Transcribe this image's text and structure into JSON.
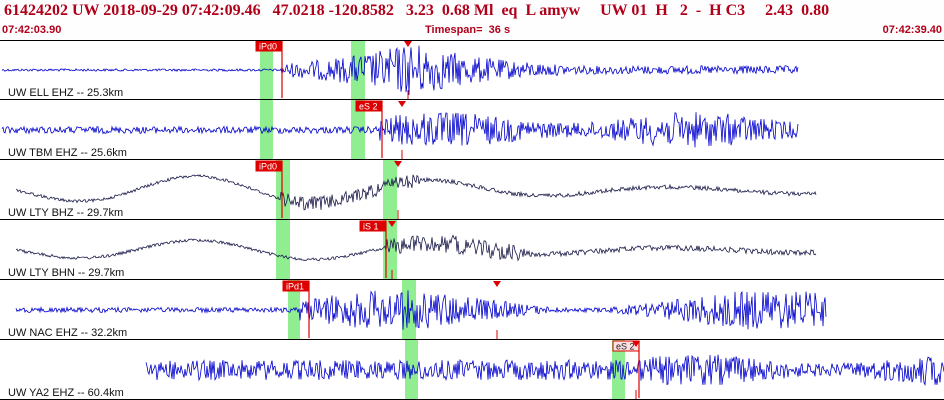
{
  "header": {
    "summary_line": "61424202 UW 2018-09-29 07:42:09.46   47.0218 -120.8582   3.23  0.68 Ml  eq  L amyw     UW 01  H   2  -  H C3     2.43  0.80",
    "start_time": "07:42:03.90",
    "timespan": "Timespan=  36 s",
    "end_time": "07:42:39.40"
  },
  "colors": {
    "header_text": "#b0001a",
    "trace_blue": "#0000cc",
    "trace_black": "#1a1a4a",
    "pick_highlight": "#90ee90",
    "pick_marker": "#dd0000",
    "divider": "#000000"
  },
  "traces": [
    {
      "label": "UW ELL EHZ -- 25.3km",
      "color": "blue",
      "picks": [
        {
          "label": "iPd0",
          "style": "filled"
        }
      ],
      "pattern": "impulsive"
    },
    {
      "label": "UW TBM EHZ -- 25.6km",
      "color": "blue",
      "picks": [
        {
          "label": "eS 2",
          "style": "filled"
        }
      ],
      "pattern": "noisy"
    },
    {
      "label": "UW LTY BHZ -- 29.7km",
      "color": "black",
      "picks": [
        {
          "label": "iPd0",
          "style": "filled"
        }
      ],
      "pattern": "longperiod"
    },
    {
      "label": "UW LTY BHN -- 29.7km",
      "color": "black",
      "picks": [
        {
          "label": "iS 1",
          "style": "filled"
        }
      ],
      "pattern": "longperiod"
    },
    {
      "label": "UW NAC EHZ -- 32.2km",
      "color": "blue",
      "picks": [
        {
          "label": "iPd1",
          "style": "filled"
        }
      ],
      "pattern": "emergent"
    },
    {
      "label": "UW YA2 EHZ -- 60.4km",
      "color": "blue",
      "picks": [
        {
          "label": "eS 2",
          "style": "outline"
        }
      ],
      "pattern": "noisy"
    }
  ]
}
